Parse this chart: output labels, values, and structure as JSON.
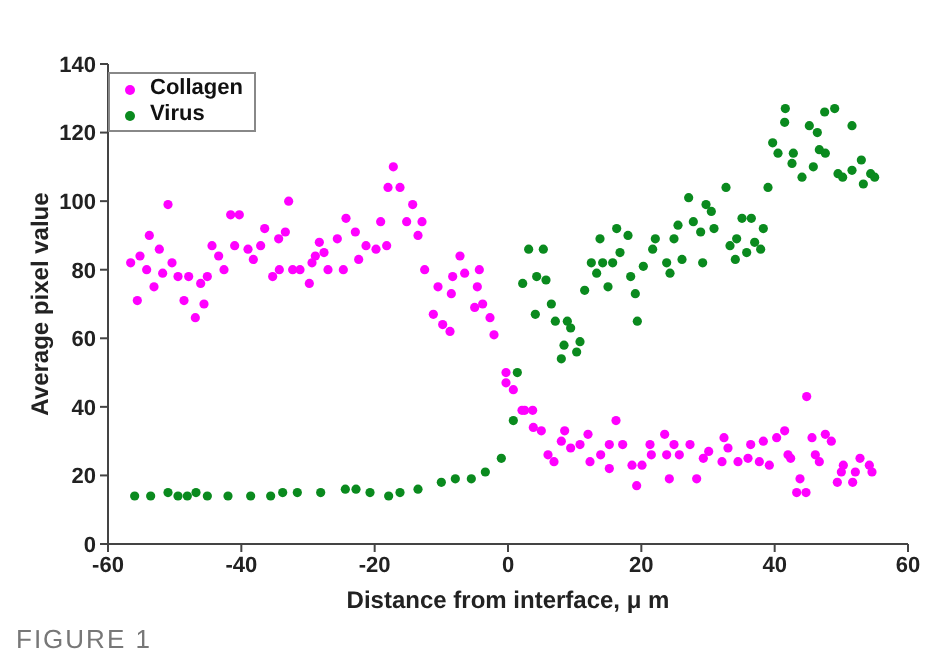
{
  "chart_data": {
    "type": "scatter",
    "xlabel": "Distance from interface, μ m",
    "ylabel": "Average pixel value",
    "xlim": [
      -60,
      60
    ],
    "xticks": [
      -60,
      -40,
      -20,
      0,
      20,
      40,
      60
    ],
    "ylim": [
      0,
      140
    ],
    "yticks": [
      0,
      20,
      40,
      60,
      80,
      100,
      120,
      140
    ],
    "legend": "top left",
    "marker": "circle",
    "annotations": [
      "FIGURE 1"
    ],
    "series": [
      {
        "name": "Collagen",
        "color": "#ff00ff",
        "x": [
          -56.6,
          -55.6,
          -55.2,
          -54.2,
          -53.8,
          -53.1,
          -52.3,
          -51.8,
          -51,
          -50.4,
          -49.5,
          -48.6,
          -47.9,
          -46.9,
          -46.1,
          -45.6,
          -45.1,
          -44.4,
          -43.4,
          -42.6,
          -41.6,
          -41,
          -40.3,
          -39,
          -38.2,
          -37.1,
          -36.5,
          -35.3,
          -34.4,
          -34.3,
          -33.4,
          -32.9,
          -32.3,
          -31.2,
          -29.8,
          -29.4,
          -28.9,
          -28.3,
          -27.6,
          -27,
          -25.6,
          -24.7,
          -24.3,
          -22.9,
          -22.4,
          -21.3,
          -19.8,
          -19.1,
          -18.2,
          -18,
          -17.2,
          -16.2,
          -15.2,
          -14.3,
          -13.5,
          -12.9,
          -12.5,
          -11.2,
          -10.5,
          -9.8,
          -8.7,
          -8.5,
          -8.3,
          -7.2,
          -6.5,
          -5,
          -4.6,
          -4.3,
          -3.8,
          -2.7,
          -2.1,
          -0.3,
          -0.3,
          0.8,
          2.1,
          2.5,
          3.7,
          3.8,
          5,
          6,
          6.9,
          8,
          8.5,
          9.4,
          10.8,
          12,
          12.3,
          13.9,
          15.2,
          15.2,
          16.2,
          17.2,
          18.6,
          19.3,
          20.1,
          21.3,
          21.5,
          23.5,
          23.8,
          24.2,
          24.9,
          25.7,
          27.3,
          28.3,
          29.3,
          30.1,
          32.1,
          32.4,
          33,
          34.5,
          36,
          36.4,
          37.7,
          38.3,
          39.2,
          40.3,
          41.5,
          42,
          42.4,
          43.3,
          43.8,
          44.7,
          44.8,
          45.6,
          46.1,
          46.7,
          47.6,
          48.5,
          49.4,
          50,
          50.3,
          51.7,
          52.1,
          52.8,
          54.2,
          54.6
        ],
        "values": [
          82,
          71,
          84,
          80,
          90,
          75,
          86,
          79,
          99,
          82,
          78,
          71,
          78,
          66,
          76,
          70,
          78,
          87,
          84,
          80,
          96,
          87,
          96,
          86,
          83,
          87,
          92,
          78,
          89,
          80,
          91,
          100,
          80,
          80,
          76,
          82,
          84,
          88,
          85,
          80,
          89,
          80,
          95,
          91,
          83,
          87,
          86,
          94,
          87,
          104,
          110,
          104,
          94,
          99,
          90,
          94,
          80,
          67,
          75,
          64,
          62,
          73,
          78,
          84,
          79,
          69,
          75,
          80,
          70,
          66,
          61,
          50,
          47,
          45,
          39,
          39,
          39,
          34,
          33,
          26,
          24,
          30,
          33,
          28,
          29,
          32,
          24,
          26,
          22,
          29,
          36,
          29,
          23,
          17,
          23,
          29,
          26,
          32,
          26,
          19,
          29,
          26,
          29,
          19,
          25,
          27,
          24,
          31,
          28,
          24,
          25,
          29,
          24,
          30,
          23,
          31,
          33,
          26,
          25,
          15,
          19,
          15,
          43,
          31,
          26,
          24,
          32,
          30,
          18,
          21,
          23,
          18,
          21,
          25,
          23,
          21
        ]
      },
      {
        "name": "Virus",
        "color": "#0a8a1e",
        "x": [
          -56,
          -53.6,
          -51,
          -49.5,
          -48.1,
          -46.8,
          -45.1,
          -42,
          -38.6,
          -35.6,
          -33.8,
          -31.6,
          -28.1,
          -24.4,
          -22.8,
          -20.7,
          -17.9,
          -16.2,
          -13.5,
          -10,
          -7.9,
          -5.5,
          -3.4,
          -1,
          0.8,
          1.4,
          2.2,
          3.1,
          4.1,
          4.3,
          5.3,
          5.7,
          6.5,
          7.1,
          8,
          8.4,
          8.9,
          9.4,
          10.3,
          10.8,
          11.5,
          12.5,
          13.3,
          13.8,
          14.2,
          15,
          15.7,
          16.3,
          16.8,
          18,
          18.4,
          19.1,
          19.4,
          20.3,
          21.7,
          22.1,
          23.8,
          24.3,
          24.9,
          25.5,
          26.1,
          27.1,
          27.8,
          28.9,
          29.2,
          29.7,
          30.5,
          30.9,
          32.7,
          33.3,
          34.1,
          34.3,
          35.1,
          35.8,
          36.5,
          37,
          37.9,
          38.3,
          39,
          39.7,
          40.5,
          41.5,
          41.6,
          42.6,
          42.8,
          44.1,
          45.2,
          45.8,
          46.4,
          46.7,
          47.5,
          47.6,
          49,
          49.5,
          50.2,
          51.6,
          51.6,
          53,
          53.3,
          54.4,
          55
        ],
        "values": [
          14,
          14,
          15,
          14,
          14,
          15,
          14,
          14,
          14,
          14,
          15,
          15,
          15,
          16,
          16,
          15,
          14,
          15,
          16,
          18,
          19,
          19,
          21,
          25,
          36,
          50,
          76,
          86,
          67,
          78,
          86,
          77,
          70,
          65,
          54,
          58,
          65,
          63,
          56,
          59,
          74,
          82,
          79,
          89,
          82,
          75,
          82,
          92,
          85,
          90,
          78,
          73,
          65,
          81,
          86,
          89,
          82,
          79,
          89,
          93,
          83,
          101,
          94,
          91,
          82,
          99,
          97,
          92,
          104,
          87,
          83,
          89,
          95,
          85,
          95,
          88,
          86,
          92,
          104,
          117,
          114,
          123,
          127,
          111,
          114,
          107,
          122,
          110,
          120,
          115,
          126,
          114,
          127,
          108,
          107,
          122,
          109,
          112,
          105,
          108,
          107
        ]
      }
    ]
  }
}
